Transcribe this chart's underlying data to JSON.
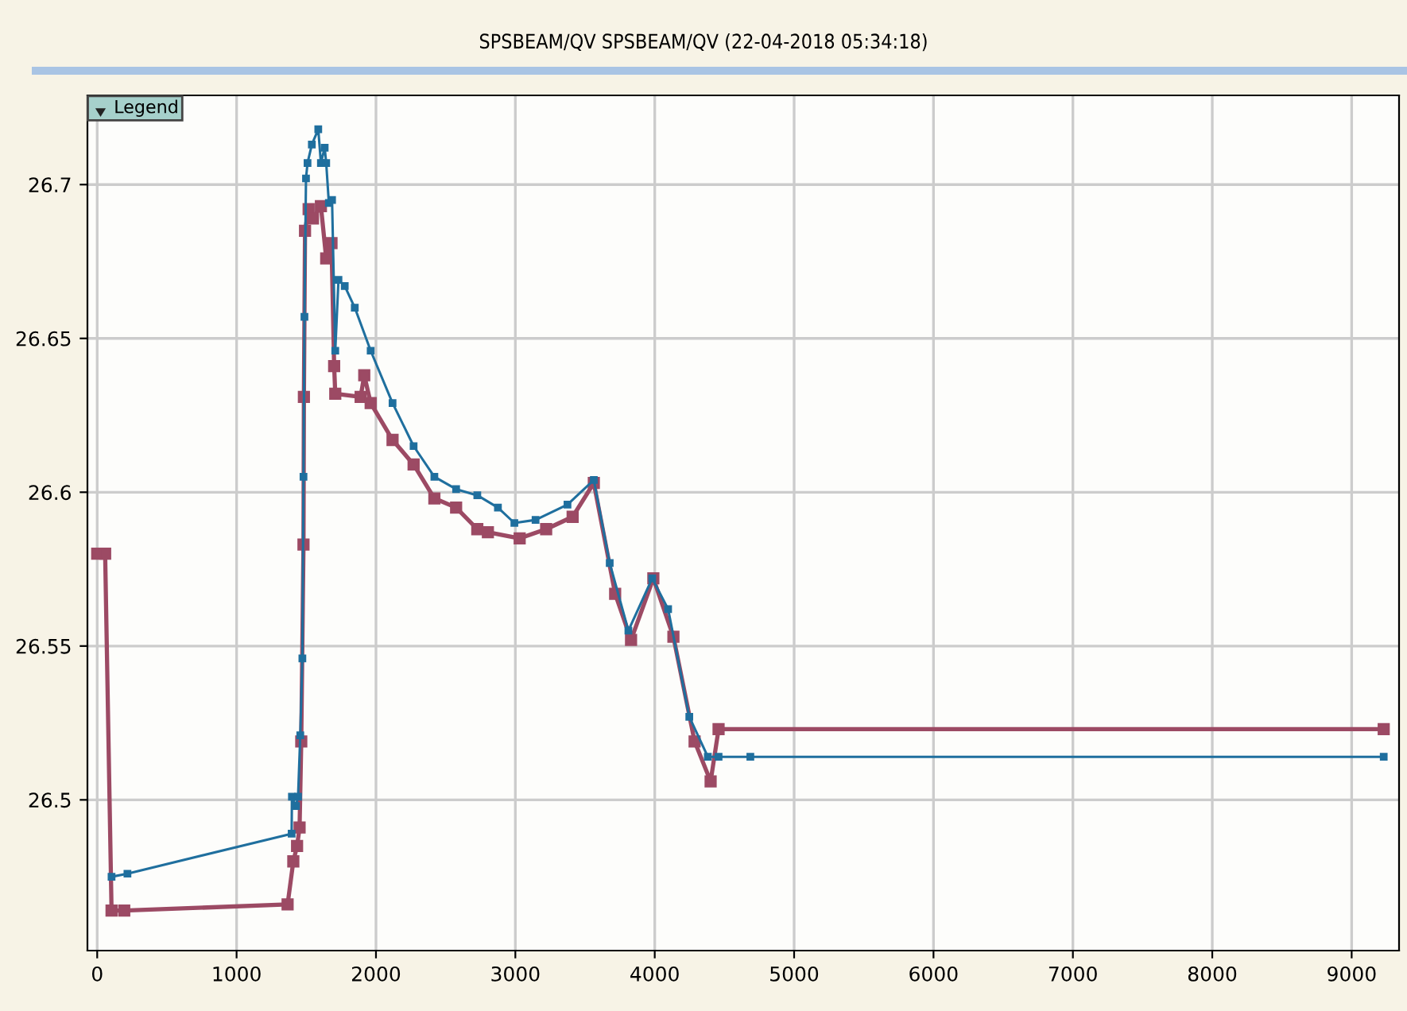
{
  "chart_data": {
    "type": "line",
    "title": "SPSBEAM/QV SPSBEAM/QV (22-04-2018 05:34:18)",
    "annotations": [
      "Legend"
    ],
    "series": [
      {
        "color": "#9c4a64",
        "x": [
          0,
          57,
          103,
          194,
          1366,
          1407,
          1434,
          1452,
          1464,
          1480,
          1483,
          1491,
          1517,
          1548,
          1605,
          1643,
          1681,
          1700,
          1708,
          1890,
          1916,
          1962,
          2119,
          2270,
          2419,
          2575,
          2727,
          2803,
          3031,
          3221,
          3411,
          3563,
          3716,
          3830,
          3990,
          4134,
          4286,
          4401,
          4458,
          9230
        ],
        "values": [
          26.58,
          26.58,
          26.464,
          26.464,
          26.466,
          26.48,
          26.485,
          26.491,
          26.519,
          26.583,
          26.631,
          26.685,
          26.692,
          26.689,
          26.693,
          26.676,
          26.681,
          26.641,
          26.632,
          26.631,
          26.638,
          26.629,
          26.617,
          26.609,
          26.598,
          26.595,
          26.588,
          26.587,
          26.585,
          26.588,
          26.592,
          26.603,
          26.567,
          26.552,
          26.572,
          26.553,
          26.519,
          26.506,
          26.523,
          26.523
        ]
      },
      {
        "color": "#1f6f9e",
        "x": [
          103,
          217,
          1395,
          1397,
          1426,
          1441,
          1457,
          1472,
          1480,
          1487,
          1498,
          1509,
          1540,
          1586,
          1605,
          1632,
          1643,
          1662,
          1685,
          1708,
          1731,
          1776,
          1848,
          1962,
          2119,
          2270,
          2419,
          2575,
          2727,
          2875,
          2993,
          3145,
          3374,
          3563,
          3677,
          3811,
          3982,
          4096,
          4248,
          4381,
          4458,
          4686,
          9230
        ],
        "values": [
          26.475,
          26.476,
          26.489,
          26.501,
          26.498,
          26.501,
          26.521,
          26.546,
          26.605,
          26.657,
          26.702,
          26.707,
          26.713,
          26.718,
          26.707,
          26.712,
          26.707,
          26.694,
          26.695,
          26.646,
          26.669,
          26.667,
          26.66,
          26.646,
          26.629,
          26.615,
          26.605,
          26.601,
          26.599,
          26.595,
          26.59,
          26.591,
          26.596,
          26.604,
          26.577,
          26.555,
          26.572,
          26.562,
          26.527,
          26.514,
          26.514,
          26.514,
          26.514
        ]
      }
    ],
    "xlim": [
      -70,
      9340
    ],
    "ylim": [
      26.451,
      26.729
    ],
    "xticks": [
      0,
      1000,
      2000,
      3000,
      4000,
      5000,
      6000,
      7000,
      8000,
      9000
    ],
    "yticks": [
      26.5,
      26.55,
      26.6,
      26.65,
      26.7
    ],
    "grid": true,
    "marker": "square",
    "line_style": "solid"
  }
}
